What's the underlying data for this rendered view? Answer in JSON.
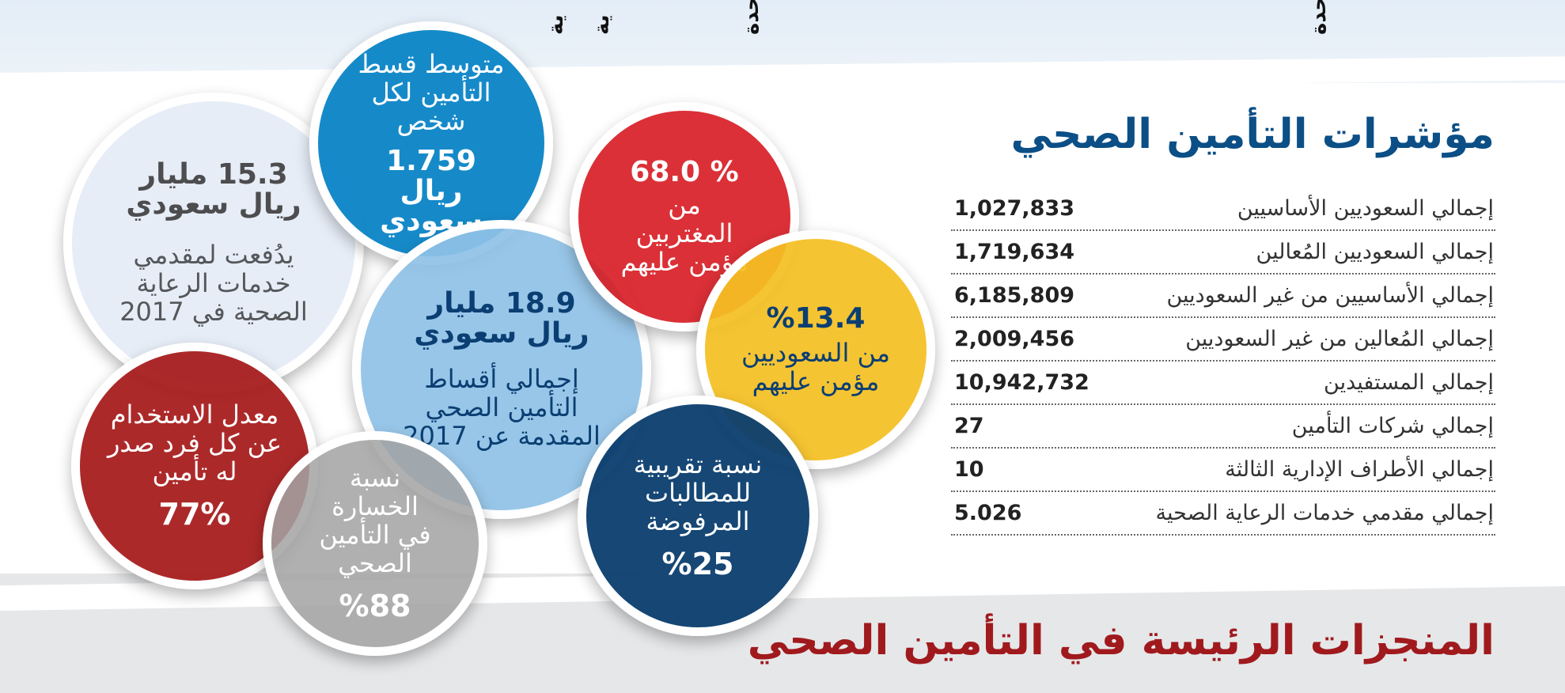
{
  "top_labels": [
    "ية",
    "ية",
    "حدة",
    "حدة"
  ],
  "title": "مؤشرات التأمين الصحي",
  "indicators": [
    {
      "label": "إجمالي السعوديين الأساسيين",
      "value": "1,027,833"
    },
    {
      "label": "إجمالي السعوديين المُعالين",
      "value": "1,719,634"
    },
    {
      "label": "إجمالي الأساسيين من غير السعوديين",
      "value": "6,185,809"
    },
    {
      "label": "إجمالي المُعالين من غير السعوديين",
      "value": "2,009,456"
    },
    {
      "label": "إجمالي المستفيدين",
      "value": "10,942,732"
    },
    {
      "label": "إجمالي شركات التأمين",
      "value": "27"
    },
    {
      "label": "إجمالي الأطراف الإدارية الثالثة",
      "value": "10"
    },
    {
      "label": "إجمالي مقدمي خدمات الرعاية الصحية",
      "value": "5.026"
    }
  ],
  "bottom_title": "المنجزات الرئيسة في التأمين الصحي",
  "circles": {
    "paid_providers": {
      "amount": "15.3 مليار ريال سعودي",
      "text": "يدُفعت لمقدمي خدمات الرعاية الصحية في 2017",
      "color": "#e4ecf6"
    },
    "avg_premium": {
      "text": "متوسط قسط التأمين لكل شخص",
      "amount": "1.759 ريال سعودي",
      "color": "#0a84c6"
    },
    "expats_insured": {
      "pct": "68.0 %",
      "text": "من المغتربين مؤمن عليهم",
      "color": "#d71a21"
    },
    "total_premiums": {
      "amount": "18.9 مليار ريال سعودي",
      "text": "إجمالي أقساط التأمين الصحي المقدمة عن 2017",
      "color": "#8fc1e6"
    },
    "saudis_insured": {
      "pct": "%13.4",
      "text": "من السعوديين مؤمن عليهم",
      "color": "#f4c022"
    },
    "usage_rate": {
      "text": "معدل الاستخدام عن كل فرد صدر له تأمين",
      "pct": "77%",
      "color": "#a81d1f"
    },
    "loss_ratio": {
      "text": "نسبة الخسارة في التأمين الصحي",
      "pct": "%88",
      "color": "#a3a3a3"
    },
    "rejected_claims": {
      "text": "نسبة تقريبية للمطالبات المرفوضة",
      "pct": "%25",
      "color": "#0a3d6e"
    }
  }
}
